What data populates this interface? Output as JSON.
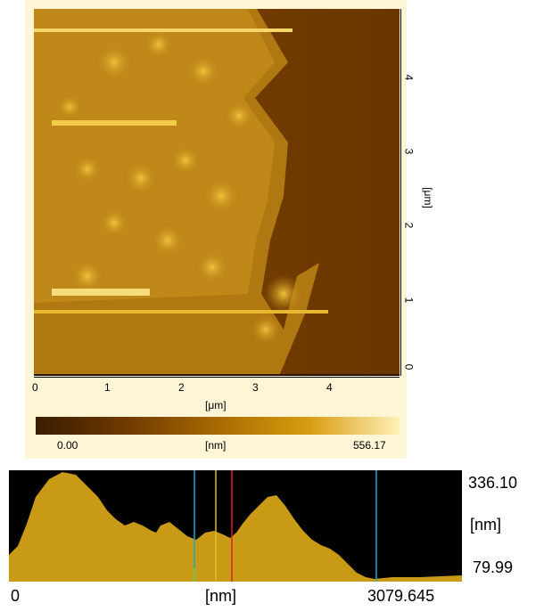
{
  "image_axes": {
    "x_ticks": [
      "0",
      "1",
      "2",
      "3",
      "4"
    ],
    "x_unit": "[μm]",
    "y_ticks": [
      "0",
      "1",
      "2",
      "3",
      "4"
    ],
    "y_unit": "[μm]"
  },
  "colorbar": {
    "min": "0.00",
    "unit": "[nm]",
    "max": "556.17",
    "colors": {
      "low": "#3a1c00",
      "high": "#fff0b8"
    }
  },
  "profile": {
    "x_min": "0",
    "x_unit": "[nm]",
    "x_max": "3079.645",
    "y_max": "336.10",
    "y_unit": "[nm]",
    "y_min": "79.99",
    "fill_color": "#c89a16",
    "cursor_colors": [
      "#22a8c8",
      "#6fd04a",
      "#e0c020",
      "#e02020",
      "#22a8c8"
    ]
  }
}
